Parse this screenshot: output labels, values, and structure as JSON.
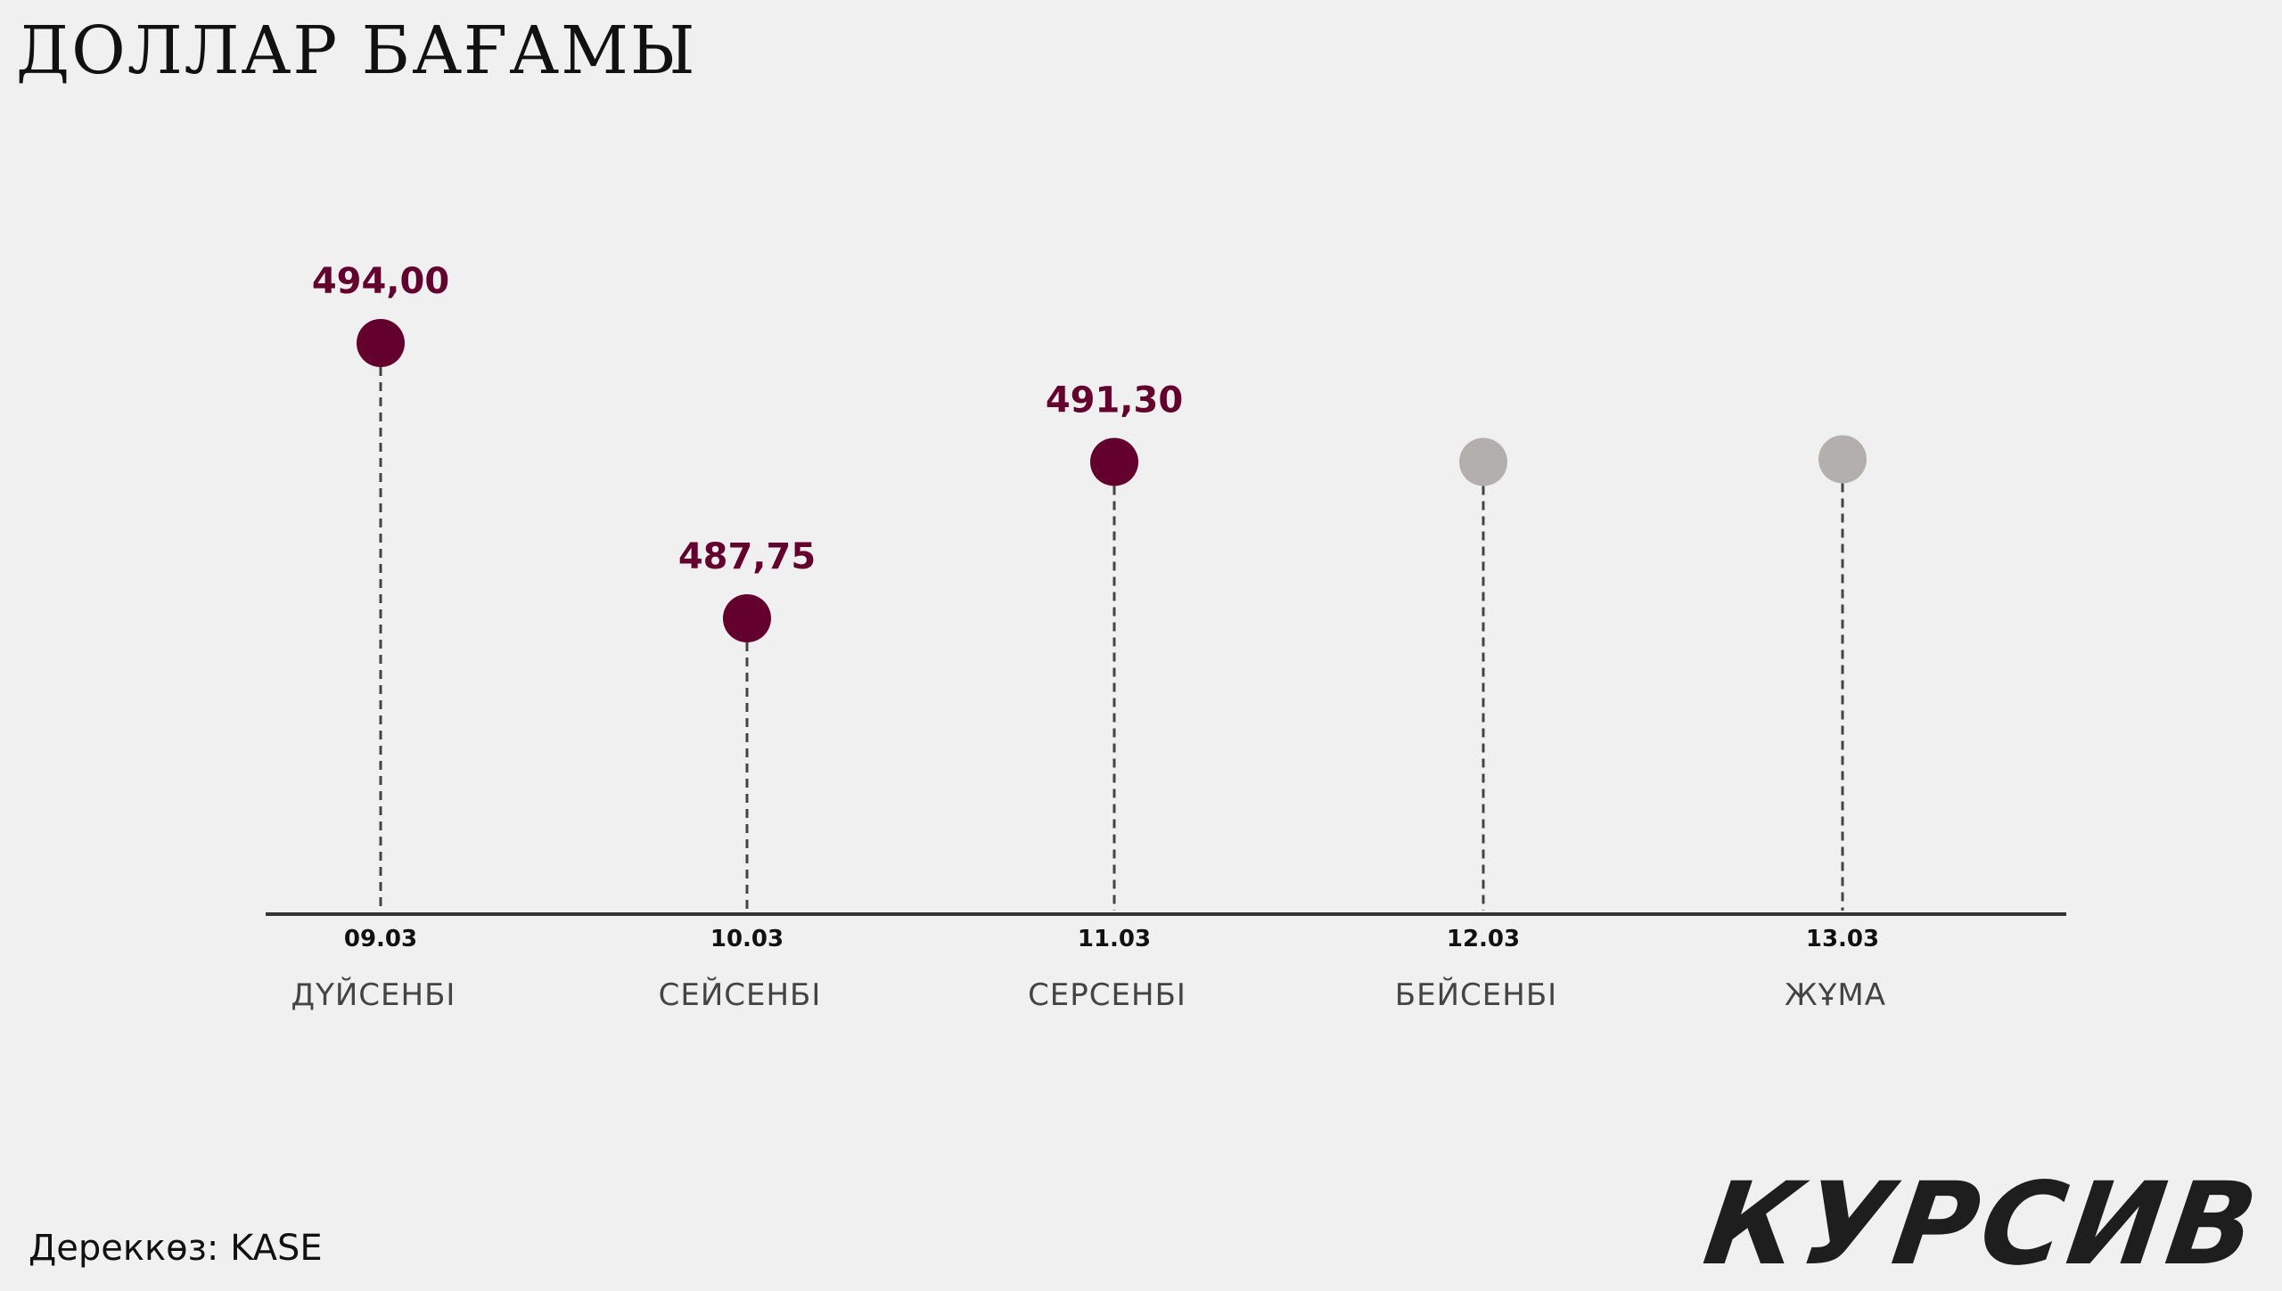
{
  "title": "ДОЛЛАР БАҒАМЫ",
  "source": "Дереккөз: KASE",
  "logo": "КУРСИВ",
  "colors": {
    "actual": "#63002e",
    "pending": "#b3afaf",
    "axis": "#333333",
    "stem": "#444444"
  },
  "chart_data": {
    "type": "scatter",
    "title": "ДОЛЛАР БАҒАМЫ",
    "xlabel": "",
    "ylabel": "",
    "categories": [
      "09.03",
      "10.03",
      "11.03",
      "12.03",
      "13.03"
    ],
    "weekdays": [
      "ДҮЙСЕНБІ",
      "СЕЙСЕНБІ",
      "СЕРСЕНБІ",
      "БЕЙСЕНБІ",
      "ЖҰМА"
    ],
    "series": [
      {
        "values": [
          494.0,
          487.75,
          491.3,
          null,
          null
        ],
        "labels": [
          "494,00",
          "487,75",
          "491,30",
          "",
          ""
        ]
      }
    ],
    "ylim": [
      470,
      500
    ],
    "grid": false,
    "legend": "none"
  }
}
